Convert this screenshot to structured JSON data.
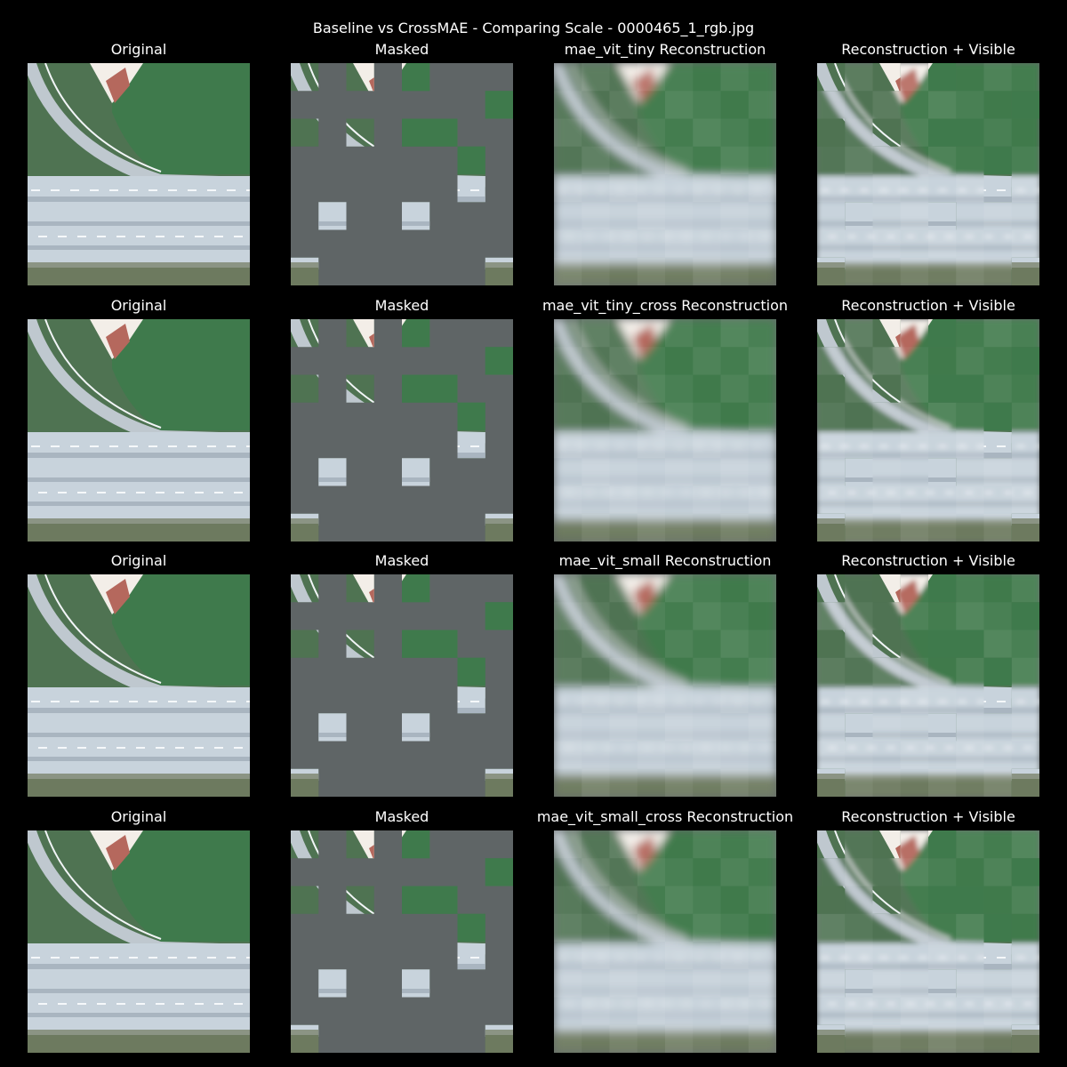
{
  "figure": {
    "title": "Baseline vs CrossMAE - Comparing Scale - 0000465_1_rgb.jpg"
  },
  "rows": [
    {
      "model": "mae_vit_tiny",
      "panels": [
        {
          "title": "Original",
          "kind": "original"
        },
        {
          "title": "Masked",
          "kind": "masked"
        },
        {
          "title": "mae_vit_tiny Reconstruction",
          "kind": "reconstruction"
        },
        {
          "title": "Reconstruction + Visible",
          "kind": "recon_visible"
        }
      ]
    },
    {
      "model": "mae_vit_tiny_cross",
      "panels": [
        {
          "title": "Original",
          "kind": "original"
        },
        {
          "title": "Masked",
          "kind": "masked"
        },
        {
          "title": "mae_vit_tiny_cross Reconstruction",
          "kind": "reconstruction"
        },
        {
          "title": "Reconstruction + Visible",
          "kind": "recon_visible"
        }
      ]
    },
    {
      "model": "mae_vit_small",
      "panels": [
        {
          "title": "Original",
          "kind": "original"
        },
        {
          "title": "Masked",
          "kind": "masked"
        },
        {
          "title": "mae_vit_small Reconstruction",
          "kind": "reconstruction"
        },
        {
          "title": "Reconstruction + Visible",
          "kind": "recon_visible"
        }
      ]
    },
    {
      "model": "mae_vit_small_cross",
      "panels": [
        {
          "title": "Original",
          "kind": "original"
        },
        {
          "title": "Masked",
          "kind": "masked"
        },
        {
          "title": "mae_vit_small_cross Reconstruction",
          "kind": "reconstruction"
        },
        {
          "title": "Reconstruction + Visible",
          "kind": "recon_visible"
        }
      ]
    }
  ],
  "mask": {
    "grid": 8,
    "visible_patches": [
      [
        0,
        0
      ],
      [
        0,
        2
      ],
      [
        0,
        4
      ],
      [
        1,
        7
      ],
      [
        2,
        0
      ],
      [
        2,
        2
      ],
      [
        2,
        4
      ],
      [
        2,
        5
      ],
      [
        3,
        6
      ],
      [
        4,
        6
      ],
      [
        5,
        1
      ],
      [
        5,
        4
      ],
      [
        7,
        0
      ],
      [
        7,
        7
      ]
    ],
    "mask_color": "#5f6566"
  },
  "colors": {
    "background": "#000000",
    "text": "#ffffff",
    "field_green": "#3f7a4c",
    "grass_dark": "#4f7352",
    "road_light": "#c8d3dc",
    "road_mid": "#a9b5c0",
    "roof_red": "#b5685d"
  }
}
